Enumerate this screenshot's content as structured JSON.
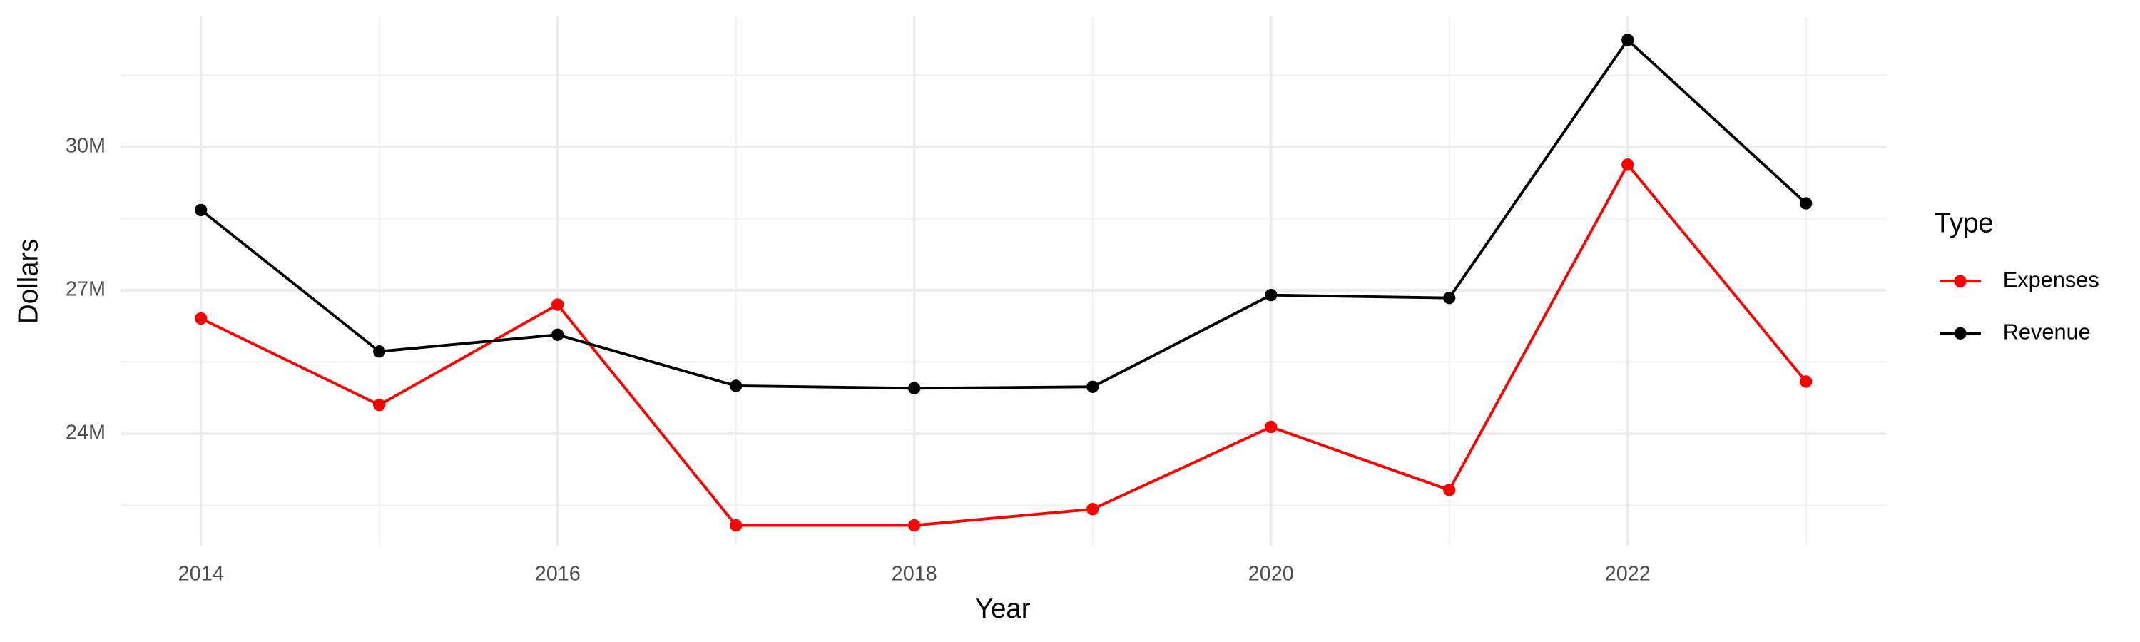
{
  "chart_data": {
    "type": "line",
    "x_label": "Year",
    "y_label": "Dollars",
    "legend_title": "Type",
    "legend_position": "right",
    "grid": true,
    "x": [
      2014,
      2015,
      2016,
      2017,
      2018,
      2019,
      2020,
      2021,
      2022,
      2023
    ],
    "xlim": [
      2013.55,
      2023.45
    ],
    "xticks": [
      2014,
      2016,
      2018,
      2020,
      2022
    ],
    "ylim": [
      21650000,
      32730000
    ],
    "yticks": [
      {
        "value": 24000000,
        "label": "24M"
      },
      {
        "value": 27000000,
        "label": "27M"
      },
      {
        "value": 30000000,
        "label": "30M"
      }
    ],
    "series": [
      {
        "name": "Expenses",
        "color": "#ff0000",
        "values": [
          26410000,
          24600000,
          26700000,
          22080000,
          22080000,
          22420000,
          24140000,
          22820000,
          29630000,
          25090000
        ]
      },
      {
        "name": "Revenue",
        "color": "#000000",
        "values": [
          28680000,
          25720000,
          26070000,
          25000000,
          24950000,
          24980000,
          26900000,
          26840000,
          32240000,
          28820000
        ]
      }
    ]
  }
}
